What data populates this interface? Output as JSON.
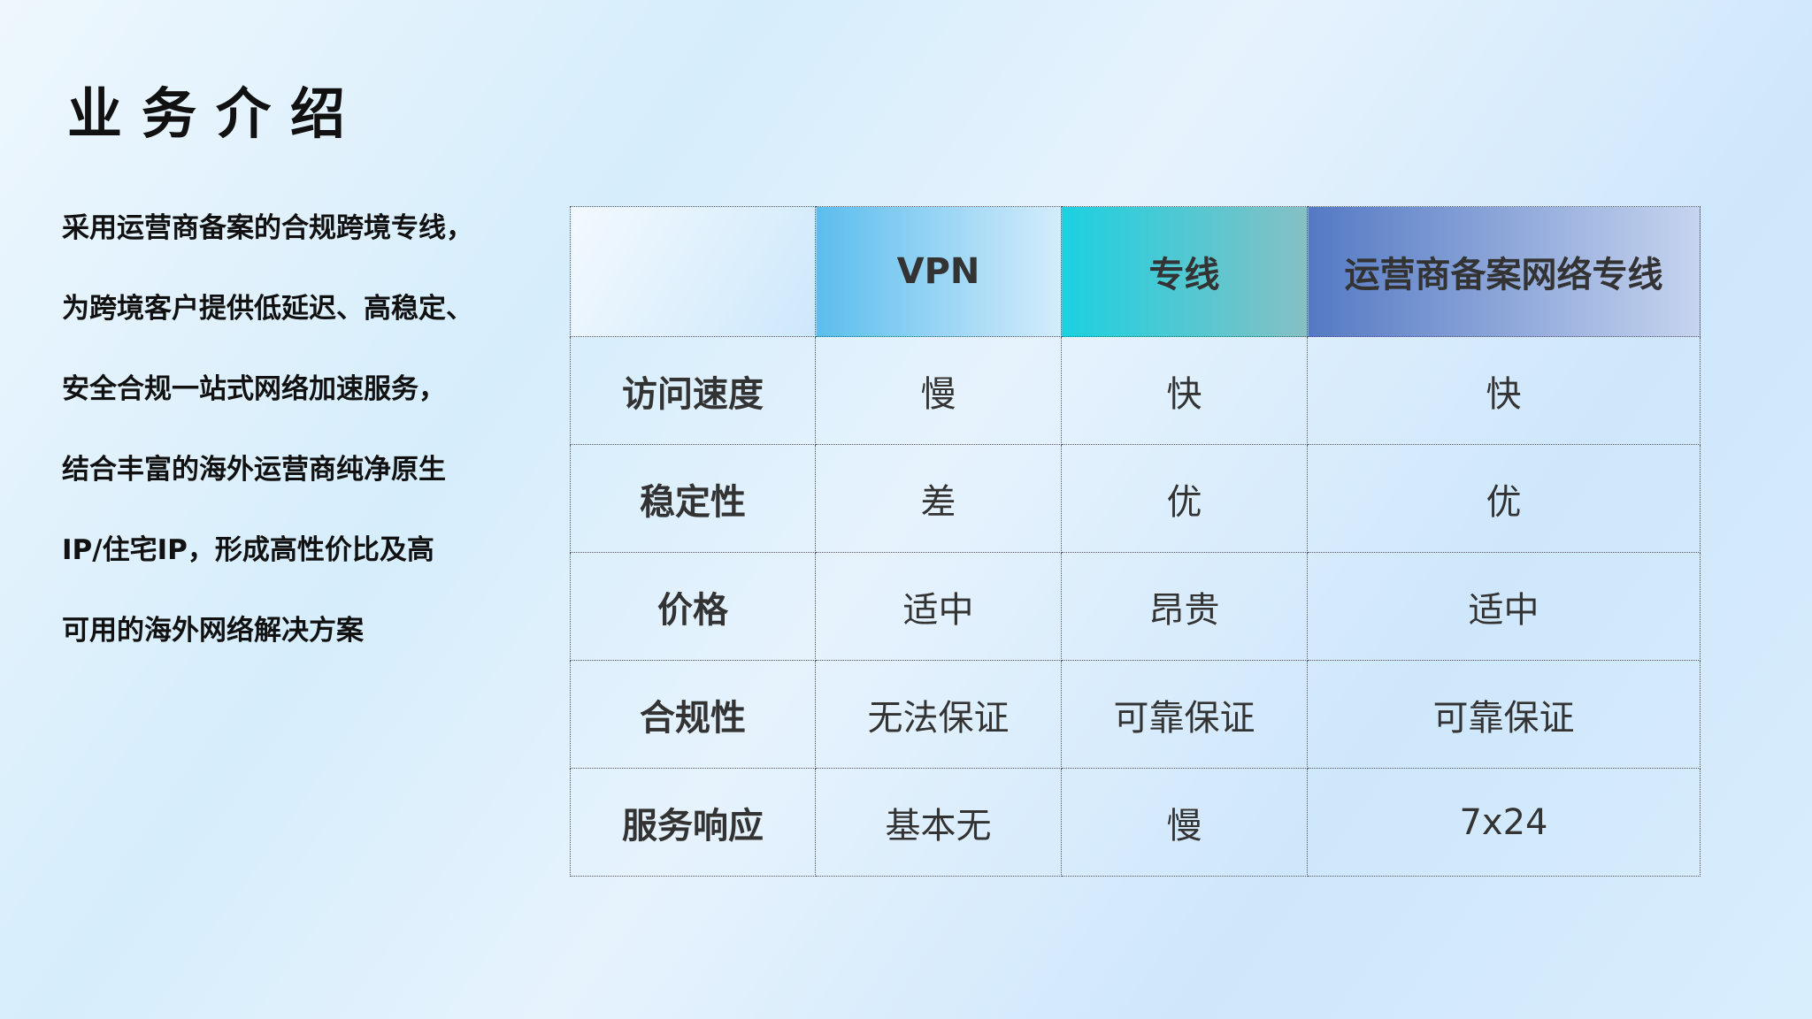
{
  "title": "业务介绍",
  "intro": [
    "采用运营商备案的合规跨境专线，",
    "为跨境客户提供低延迟、高稳定、",
    "安全合规一站式网络加速服务，",
    "结合丰富的海外运营商纯净原生",
    "IP/住宅IP，形成高性价比及高",
    "可用的海外网络解决方案"
  ],
  "table": {
    "headers": [
      "",
      "VPN",
      "专线",
      "运营商备案网络专线"
    ],
    "rows": [
      [
        "访问速度",
        "慢",
        "快",
        "快"
      ],
      [
        "稳定性",
        "差",
        "优",
        "优"
      ],
      [
        "价格",
        "适中",
        "昂贵",
        "适中"
      ],
      [
        "合规性",
        "无法保证",
        "可靠保证",
        "可靠保证"
      ],
      [
        "服务响应",
        "基本无",
        "慢",
        "7x24"
      ]
    ]
  }
}
